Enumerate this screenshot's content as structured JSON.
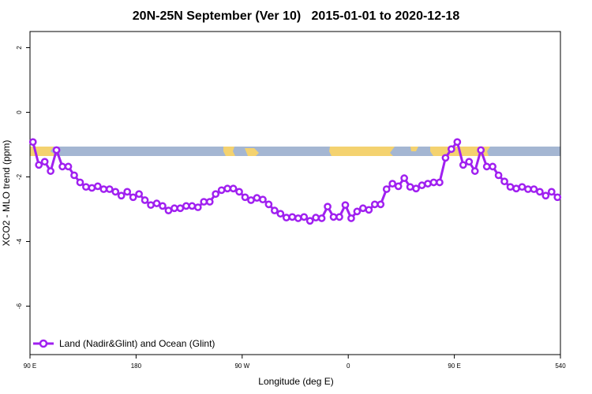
{
  "chart_data": {
    "type": "line",
    "title": "20N-25N September (Ver 10)   2015-01-01 to 2020-12-18",
    "x_label": "Longitude (deg E)",
    "y_label": "XCO2 - MLO trend (ppm)",
    "xlim": [
      90,
      540
    ],
    "ylim": [
      -7.5,
      2.5
    ],
    "xticks": [
      {
        "value": 90,
        "label": "90 E"
      },
      180,
      {
        "value": 270,
        "label": "90 W"
      },
      {
        "value": 360,
        "label": "0"
      },
      {
        "value": 450,
        "label": "90 E"
      },
      540
    ],
    "yticks": [
      -6,
      -4,
      -2,
      0,
      2
    ],
    "legend": "bottom-left",
    "x": [
      92.5,
      97.5,
      102.5,
      107.5,
      112.5,
      117.5,
      122.5,
      127.5,
      132.5,
      137.5,
      142.5,
      147.5,
      152.5,
      157.5,
      162.5,
      167.5,
      172.5,
      177.5,
      182.5,
      187.5,
      192.5,
      197.5,
      202.5,
      207.5,
      212.5,
      217.5,
      222.5,
      227.5,
      232.5,
      237.5,
      242.5,
      247.5,
      252.5,
      257.5,
      262.5,
      267.5,
      272.5,
      277.5,
      282.5,
      287.5,
      292.5,
      297.5,
      302.5,
      307.5,
      312.5,
      317.5,
      322.5,
      327.5,
      332.5,
      337.5,
      342.5,
      347.5,
      352.5,
      357.5,
      362.5,
      367.5,
      372.5,
      377.5,
      382.5,
      387.5,
      392.5,
      397.5,
      402.5,
      407.5,
      412.5,
      417.5,
      422.5,
      427.5,
      432.5,
      437.5,
      442.5,
      447.5,
      452.5,
      457.5,
      462.5,
      467.5,
      472.5,
      477.5,
      482.5,
      487.5,
      492.5,
      497.5,
      502.5,
      507.5,
      512.5,
      517.5,
      522.5,
      527.5,
      532.5,
      537.5
    ],
    "series": [
      {
        "name": "Land (Nadir&Glint) and Ocean (Glint)",
        "color": "#a020f0",
        "values": [
          -0.92,
          -1.63,
          -1.53,
          -1.82,
          -1.17,
          -1.68,
          -1.68,
          -1.95,
          -2.17,
          -2.31,
          -2.34,
          -2.29,
          -2.38,
          -2.38,
          -2.46,
          -2.58,
          -2.46,
          -2.63,
          -2.53,
          -2.72,
          -2.87,
          -2.82,
          -2.9,
          -3.04,
          -2.97,
          -2.97,
          -2.9,
          -2.9,
          -2.94,
          -2.77,
          -2.77,
          -2.53,
          -2.41,
          -2.36,
          -2.36,
          -2.46,
          -2.63,
          -2.72,
          -2.65,
          -2.7,
          -2.85,
          -3.04,
          -3.14,
          -3.26,
          -3.24,
          -3.28,
          -3.24,
          -3.36,
          -3.26,
          -3.28,
          -2.92,
          -3.24,
          -3.24,
          -2.87,
          -3.28,
          -3.07,
          -2.97,
          -3.02,
          -2.85,
          -2.85,
          -2.38,
          -2.21,
          -2.29,
          -2.04,
          -2.31,
          -2.36,
          -2.26,
          -2.21,
          -2.17,
          -2.17,
          -1.41,
          -1.14,
          -0.92,
          -1.63,
          -1.53,
          -1.82,
          -1.17,
          -1.68,
          -1.68,
          -1.95,
          -2.14,
          -2.31,
          -2.36,
          -2.31,
          -2.38,
          -2.38,
          -2.46,
          -2.58,
          -2.46,
          -2.63
        ]
      }
    ]
  }
}
